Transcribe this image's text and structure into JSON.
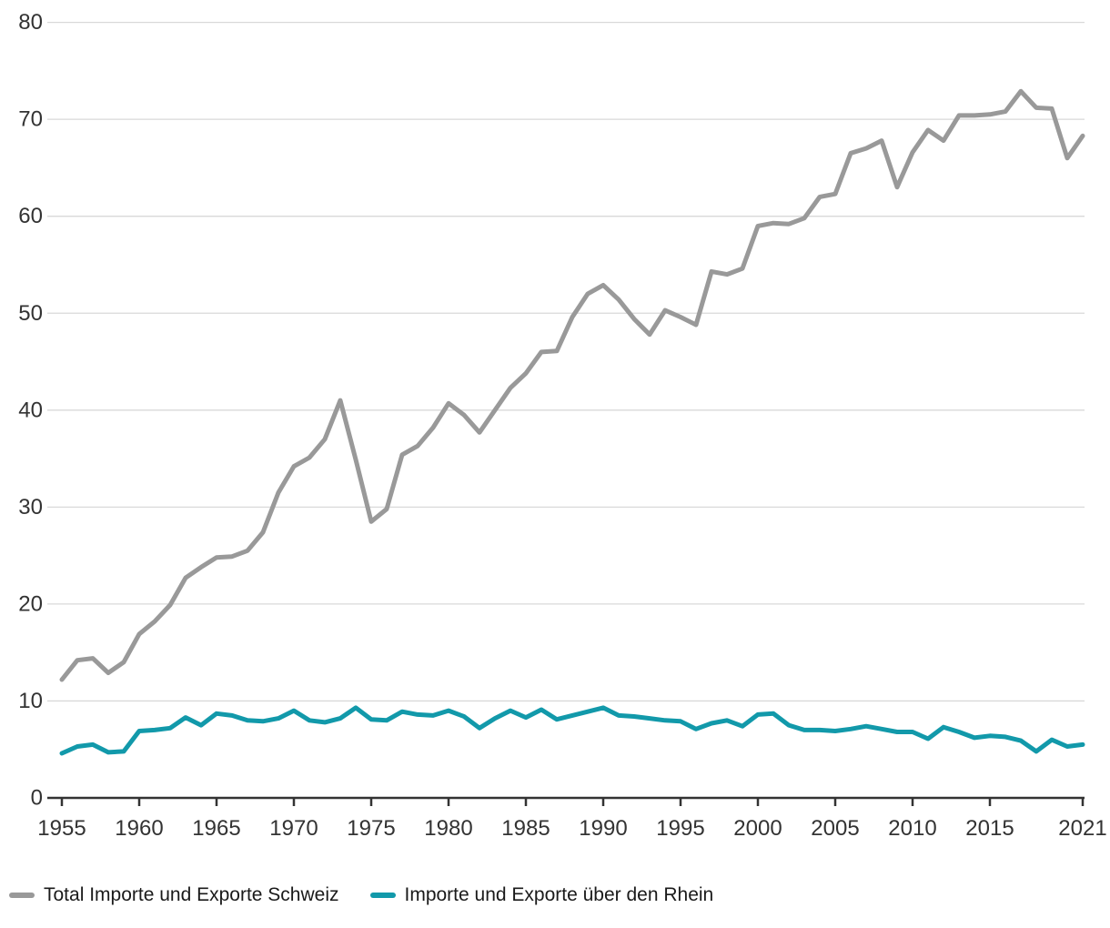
{
  "chart_data": {
    "type": "line",
    "title": "",
    "xlabel": "",
    "ylabel": "",
    "x": [
      1955,
      1956,
      1957,
      1958,
      1959,
      1960,
      1961,
      1962,
      1963,
      1964,
      1965,
      1966,
      1967,
      1968,
      1969,
      1970,
      1971,
      1972,
      1973,
      1974,
      1975,
      1976,
      1977,
      1978,
      1979,
      1980,
      1981,
      1982,
      1983,
      1984,
      1985,
      1986,
      1987,
      1988,
      1989,
      1990,
      1991,
      1992,
      1993,
      1994,
      1995,
      1996,
      1997,
      1998,
      1999,
      2000,
      2001,
      2002,
      2003,
      2004,
      2005,
      2006,
      2007,
      2008,
      2009,
      2010,
      2011,
      2012,
      2013,
      2014,
      2015,
      2016,
      2017,
      2018,
      2019,
      2020,
      2021
    ],
    "series": [
      {
        "name": "Total Importe und Exporte Schweiz",
        "color": "#999999",
        "values": [
          12.2,
          14.2,
          14.4,
          12.9,
          14.0,
          16.9,
          18.2,
          19.9,
          22.7,
          23.8,
          24.8,
          24.9,
          25.5,
          27.4,
          31.5,
          34.2,
          35.1,
          37.0,
          41.0,
          34.9,
          28.5,
          29.8,
          35.4,
          36.3,
          38.2,
          40.7,
          39.5,
          37.7,
          40.0,
          42.3,
          43.8,
          46.0,
          46.1,
          49.6,
          52.0,
          52.9,
          51.4,
          49.4,
          47.8,
          50.3,
          49.6,
          48.8,
          54.3,
          54.0,
          54.6,
          59.0,
          59.3,
          59.2,
          59.8,
          62.0,
          62.3,
          66.5,
          67.0,
          67.8,
          63.0,
          66.6,
          68.9,
          67.8,
          70.4,
          70.4,
          70.5,
          70.8,
          72.9,
          71.2,
          71.1,
          66.0,
          68.3
        ]
      },
      {
        "name": "Importe und Exporte über den Rhein",
        "color": "#1299aa",
        "values": [
          4.6,
          5.3,
          5.5,
          4.7,
          4.8,
          6.9,
          7.0,
          7.2,
          8.3,
          7.5,
          8.7,
          8.5,
          8.0,
          7.9,
          8.2,
          9.0,
          8.0,
          7.8,
          8.2,
          9.3,
          8.1,
          8.0,
          8.9,
          8.6,
          8.5,
          9.0,
          8.4,
          7.2,
          8.2,
          9.0,
          8.3,
          9.1,
          8.1,
          8.5,
          8.9,
          9.3,
          8.5,
          8.4,
          8.2,
          8.0,
          7.9,
          7.1,
          7.7,
          8.0,
          7.4,
          8.6,
          8.7,
          7.5,
          7.0,
          7.0,
          6.9,
          7.1,
          7.4,
          7.1,
          6.8,
          6.8,
          6.1,
          7.3,
          6.8,
          6.2,
          6.4,
          6.3,
          5.9,
          4.8,
          6.0,
          5.3,
          5.5
        ]
      }
    ],
    "ylim": [
      0,
      80
    ],
    "yticks": [
      0,
      10,
      20,
      30,
      40,
      50,
      60,
      70,
      80
    ],
    "xtick_labels": [
      "1955",
      "1960",
      "1965",
      "1970",
      "1975",
      "1980",
      "1985",
      "1990",
      "1995",
      "2000",
      "2005",
      "2010",
      "2015",
      "2021"
    ],
    "grid": "horizontal",
    "legend_position": "bottom-left",
    "axis_color": "#333333",
    "grid_color": "#d9d9d9",
    "tick_label_color": "#333333",
    "line_width": 5
  }
}
